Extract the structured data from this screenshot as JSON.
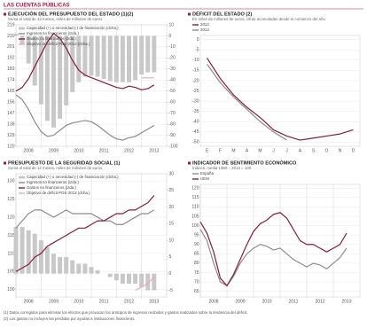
{
  "header": "LAS CUENTAS PÚBLICAS",
  "footnotes": [
    "(1) Datos corregidos para eliminar los efectos que provocan los anticipos de ingresos recibidos y gastos realizados sobre la tendencia del déficit.",
    "(2) Los gastos no incluyen las pérdidas por ayudas a instituciones financieras."
  ],
  "chart_data": [
    {
      "type": "line",
      "title": "EJECUCIÓN DEL PRESUPUESTO DEL ESTADO (1)(2)",
      "subtitle": "Suma el total de 12 meses, miles de millones de euros",
      "x": [
        2008,
        2008.25,
        2008.5,
        2008.75,
        2009,
        2009.25,
        2009.5,
        2009.75,
        2010,
        2010.25,
        2010.5,
        2010.75,
        2011,
        2011.25,
        2011.5,
        2011.75,
        2012,
        2012.25,
        2012.5,
        2012.75,
        2013,
        2013.25,
        2013.5
      ],
      "xlim": [
        2008,
        2014
      ],
      "xticks": [
        2008,
        2009,
        2010,
        2011,
        2012,
        2013
      ],
      "ylim": [
        120,
        219
      ],
      "yticks": [
        219,
        210,
        201,
        192,
        183,
        174,
        165,
        156,
        147,
        138,
        129,
        120
      ],
      "y2lim": [
        -100,
        10
      ],
      "y2ticks": [
        10,
        0,
        -10,
        -20,
        -30,
        -40,
        -50,
        -60,
        -70,
        -80,
        -90,
        -100
      ],
      "series": [
        {
          "name": "Capacidad (+) o necesidad (-) de financiación (dcha.)",
          "type": "bar",
          "axis": "y2",
          "color": "#c8c8c8",
          "values": [
            2,
            -8,
            -25,
            -45,
            -62,
            -77,
            -83,
            -75,
            -63,
            -51,
            -42,
            -37,
            -36,
            -37,
            -39,
            -41,
            -42,
            -42,
            -42,
            -40,
            -35,
            -33,
            -33
          ]
        },
        {
          "name": "Ingresos no financieros (izda.)",
          "type": "line",
          "color": "#8c8c8c",
          "values": [
            162,
            158,
            150,
            140,
            132,
            128,
            129,
            133,
            137,
            139,
            140,
            141,
            140,
            137,
            133,
            129,
            126,
            125,
            127,
            128,
            131,
            134,
            137
          ]
        },
        {
          "name": "Gastos no financieros (izda.)",
          "type": "line",
          "color": "#8b1a3b",
          "values": [
            165,
            168,
            175,
            185,
            195,
            205,
            212,
            208,
            200,
            190,
            182,
            178,
            176,
            174,
            172,
            170,
            168,
            167,
            169,
            168,
            166,
            167,
            170
          ]
        },
        {
          "name": "Objetivo de déficit PGE-2013 (dcha.)",
          "type": "line",
          "axis": "y2",
          "color": "#f0a8c0",
          "values": [
            null,
            null,
            null,
            null,
            null,
            null,
            null,
            null,
            null,
            null,
            null,
            null,
            null,
            null,
            null,
            null,
            null,
            null,
            null,
            null,
            -38,
            -38,
            -38
          ]
        }
      ]
    },
    {
      "type": "line",
      "title": "DÉFICIT DEL ESTADO (2)",
      "subtitle": "En miles de millones de euros, cifras acumuladas desde el comienzo del año",
      "categories": [
        "E",
        "F",
        "M",
        "A",
        "M",
        "J",
        "J",
        "A",
        "S",
        "O",
        "N",
        "D"
      ],
      "ylim": [
        -52,
        2
      ],
      "yticks": [
        0,
        -5,
        -10,
        -15,
        -20,
        -25,
        -30,
        -35,
        -40,
        -45,
        -50
      ],
      "series": [
        {
          "name": "2012",
          "type": "line",
          "color": "#8b1a3b",
          "values": [
            -9,
            -19,
            -27,
            -33,
            -38,
            -44,
            -47,
            -49,
            -48,
            -47,
            -46,
            -44
          ]
        },
        {
          "name": "2013",
          "type": "line",
          "color": "#8c8c8c",
          "values": [
            -12,
            -21,
            -28,
            -34,
            -40,
            -45,
            -49,
            null,
            null,
            null,
            null,
            null
          ]
        }
      ]
    },
    {
      "type": "line",
      "title": "PRESUPUESTO DE LA SEGURIDAD SOCIAL (1)",
      "subtitle": "Suma el total de 12 meses, miles de millones de euros",
      "x": [
        2008,
        2008.25,
        2008.5,
        2008.75,
        2009,
        2009.25,
        2009.5,
        2009.75,
        2010,
        2010.25,
        2010.5,
        2010.75,
        2011,
        2011.25,
        2011.5,
        2011.75,
        2012,
        2012.25,
        2012.5,
        2012.75,
        2013,
        2013.25,
        2013.5
      ],
      "xlim": [
        2008,
        2014
      ],
      "xticks": [
        2008,
        2009,
        2010,
        2011,
        2012,
        2013
      ],
      "ylim": [
        98,
        132
      ],
      "yticks": [
        130,
        125,
        120,
        115,
        110,
        105,
        100
      ],
      "y2lim": [
        -7,
        30
      ],
      "y2ticks": [
        30,
        25,
        20,
        15,
        10,
        5,
        0,
        -5
      ],
      "series": [
        {
          "name": "Capacidad (+) o necesidad (-) de financiación (dcha.)",
          "type": "bar",
          "axis": "y2",
          "color": "#c8c8c8",
          "values": [
            14,
            14,
            13,
            12,
            10,
            8,
            6,
            5,
            5,
            4,
            3,
            3,
            2,
            1,
            0,
            -1,
            -2,
            -3,
            -3,
            -3,
            -4,
            -5,
            -5
          ]
        },
        {
          "name": "Ingresos no financieros (izda.)",
          "type": "line",
          "color": "#8c8c8c",
          "values": [
            117,
            119,
            121,
            122,
            122,
            121,
            120,
            121,
            122,
            121,
            121,
            121,
            121,
            120,
            119,
            119,
            118,
            118,
            119,
            120,
            121,
            121,
            122
          ]
        },
        {
          "name": "Gastos no financieros (izda.)",
          "type": "line",
          "color": "#8b1a3b",
          "values": [
            105,
            106,
            107,
            109,
            110,
            112,
            113,
            114,
            115,
            116,
            117,
            117,
            118,
            119,
            119,
            120,
            121,
            121,
            122,
            122,
            123,
            124,
            126
          ]
        },
        {
          "name": "Objetivo de déficit PGE-2013 (dcha.)",
          "type": "line",
          "axis": "y2",
          "color": "#f0a8c0",
          "values": [
            null,
            null,
            null,
            null,
            null,
            null,
            null,
            null,
            null,
            null,
            null,
            null,
            null,
            null,
            null,
            null,
            null,
            null,
            null,
            -5,
            -4,
            -3,
            -1
          ]
        }
      ]
    },
    {
      "type": "line",
      "title": "INDICADOR DE SENTIMIENTO ECONÓMICO",
      "subtitle": "Índices, media 1990 – 2013 = 100",
      "x": [
        2008,
        2008.25,
        2008.5,
        2008.75,
        2009,
        2009.25,
        2009.5,
        2009.75,
        2010,
        2010.25,
        2010.5,
        2010.75,
        2011,
        2011.25,
        2011.5,
        2011.75,
        2012,
        2012.25,
        2012.5,
        2012.75,
        2013,
        2013.25,
        2013.5
      ],
      "xlim": [
        2008,
        2014
      ],
      "xticks": [
        2008,
        2009,
        2010,
        2011,
        2012,
        2013
      ],
      "ylim": [
        62,
        122
      ],
      "yticks": [
        120,
        115,
        110,
        105,
        100,
        95,
        90,
        85,
        80,
        75,
        70,
        65
      ],
      "series": [
        {
          "name": "España",
          "type": "line",
          "color": "#8c8c8c",
          "values": [
            98,
            92,
            80,
            70,
            68,
            73,
            80,
            85,
            88,
            90,
            89,
            87,
            88,
            85,
            82,
            80,
            78,
            80,
            79,
            77,
            80,
            83,
            88
          ]
        },
        {
          "name": "UEM",
          "type": "line",
          "color": "#8b1a3b",
          "values": [
            102,
            96,
            86,
            72,
            68,
            74,
            82,
            90,
            97,
            101,
            103,
            106,
            107,
            104,
            98,
            92,
            90,
            90,
            88,
            86,
            88,
            90,
            96
          ]
        }
      ]
    }
  ]
}
